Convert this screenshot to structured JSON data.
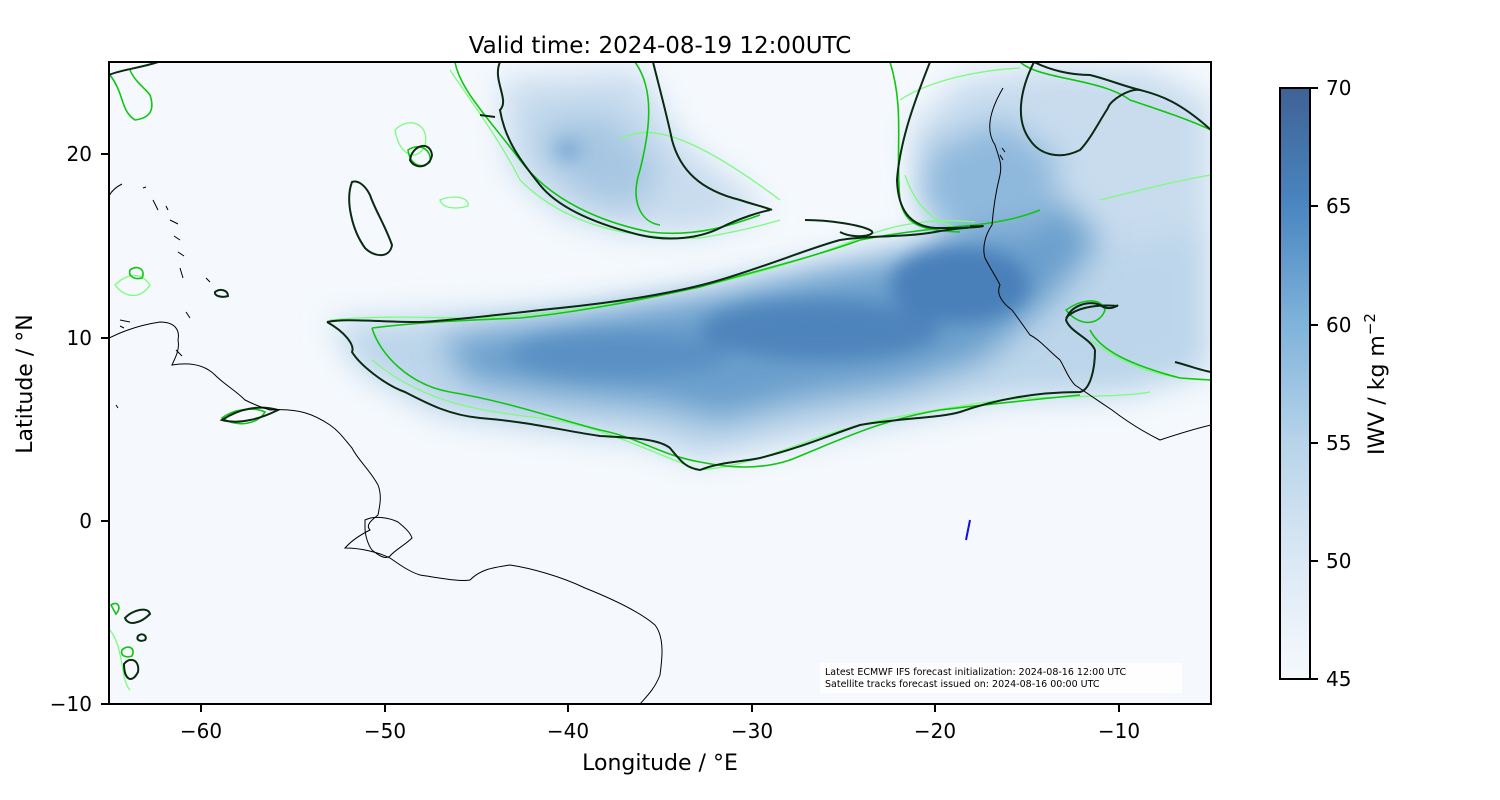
{
  "title": "Valid time: 2024-08-19 12:00UTC",
  "axes": {
    "xlabel": "Longitude / °E",
    "ylabel": "Latitude / °N",
    "xlim": [
      -65,
      -5
    ],
    "ylim": [
      -10,
      25
    ],
    "xticks": [
      -60,
      -50,
      -40,
      -30,
      -20,
      -10
    ],
    "yticks": [
      -10,
      0,
      10,
      20
    ],
    "xtick_labels": [
      "−60",
      "−50",
      "−40",
      "−30",
      "−20",
      "−10"
    ],
    "ytick_labels": [
      "−10",
      "0",
      "10",
      "20"
    ]
  },
  "colorbar": {
    "label_main": "IWV / kg m",
    "label_exp": "−2",
    "range": [
      45,
      70
    ],
    "ticks": [
      45,
      50,
      55,
      60,
      65,
      70
    ],
    "tick_labels": [
      "45",
      "50",
      "55",
      "60",
      "65",
      "70"
    ],
    "colors": [
      "#f5f9fd",
      "#c6dbef",
      "#8fbfdf",
      "#5f9fd0",
      "#4476b0",
      "#3f6296"
    ]
  },
  "annotation": {
    "line1": "Latest ECMWF IFS forecast initialization: 2024-08-16 12:00 UTC",
    "line2": "Satellite tracks forecast issued on: 2024-08-16 00:00 UTC"
  },
  "colors": {
    "contour_dark": "#0a2a12",
    "contour_green": "#11c511",
    "contour_light": "#7dfb7d",
    "coastline": "#000000",
    "satellite_track": "#1010e0"
  },
  "chart_data": {
    "type": "heatmap",
    "title": "Valid time: 2024-08-19 12:00UTC",
    "xlabel": "Longitude / °E",
    "ylabel": "Latitude / °N",
    "xlim": [
      -65,
      -5
    ],
    "ylim": [
      -10,
      25
    ],
    "colorbar_label": "IWV / kg m−2",
    "colorbar_range": [
      45,
      70
    ],
    "moist_regions": [
      {
        "lon": -30,
        "lat": 9,
        "iwv": 63
      },
      {
        "lon": -22,
        "lat": 10.5,
        "iwv": 65
      },
      {
        "lon": -17,
        "lat": 12.5,
        "iwv": 66
      },
      {
        "lon": -40,
        "lat": 8,
        "iwv": 61
      },
      {
        "lon": -37,
        "lat": 19,
        "iwv": 55
      },
      {
        "lon": -40.2,
        "lat": 20.1,
        "iwv": 59
      },
      {
        "lon": -16.5,
        "lat": 18,
        "iwv": 60
      },
      {
        "lon": -12,
        "lat": 15,
        "iwv": 60
      },
      {
        "lon": -10,
        "lat": 21,
        "iwv": 53
      }
    ],
    "satellite_track": [
      [
        -18.2,
        0.1
      ],
      [
        -18.4,
        -1.0
      ]
    ],
    "grid": false
  }
}
